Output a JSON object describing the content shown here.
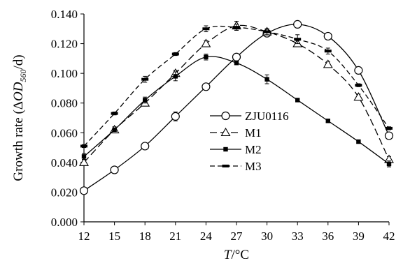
{
  "chart_data": {
    "type": "line",
    "x": [
      12,
      15,
      18,
      21,
      24,
      27,
      30,
      33,
      36,
      39,
      42
    ],
    "xticks": [
      "12",
      "15",
      "18",
      "21",
      "24",
      "27",
      "30",
      "33",
      "36",
      "39",
      "42"
    ],
    "yticks": [
      "0.000",
      "0.020",
      "0.040",
      "0.060",
      "0.080",
      "0.100",
      "0.120",
      "0.140"
    ],
    "xlim": [
      12,
      42
    ],
    "ylim": [
      0,
      0.14
    ],
    "xlabel": {
      "italic": "T",
      "rest": "/°C"
    },
    "ylabel": {
      "prefix": "Growth rate (Δ",
      "italic": "OD",
      "sub": "560",
      "suffix": "/d)"
    },
    "grid": false,
    "legend_position": "center",
    "series": [
      {
        "name": "ZJU0116",
        "line": "solid",
        "marker": "open-circle",
        "values": [
          0.021,
          0.035,
          0.051,
          0.071,
          0.091,
          0.111,
          0.127,
          0.133,
          0.125,
          0.102,
          0.058
        ],
        "errors": [
          0.002,
          0.001,
          0.001,
          0.003,
          0.001,
          0.001,
          0.002,
          0.001,
          0.001,
          0.002,
          0.002
        ]
      },
      {
        "name": "M1",
        "line": "long-dash",
        "marker": "open-triangle",
        "values": [
          0.04,
          0.062,
          0.08,
          0.1,
          0.12,
          0.132,
          0.128,
          0.12,
          0.106,
          0.084,
          0.042
        ],
        "errors": [
          0.002,
          0.002,
          0.002,
          0.002,
          0.002,
          0.003,
          0.002,
          0.002,
          0.002,
          0.002,
          0.002
        ]
      },
      {
        "name": "M2",
        "line": "solid",
        "marker": "filled-square",
        "values": [
          0.044,
          0.062,
          0.082,
          0.098,
          0.111,
          0.107,
          0.096,
          0.082,
          0.068,
          0.054,
          0.039
        ],
        "errors": [
          0.002,
          0.001,
          0.002,
          0.003,
          0.002,
          0.001,
          0.003,
          0.001,
          0.001,
          0.001,
          0.002
        ]
      },
      {
        "name": "M3",
        "line": "short-dash",
        "marker": "filled-dash",
        "values": [
          0.051,
          0.073,
          0.096,
          0.113,
          0.13,
          0.131,
          0.128,
          0.123,
          0.115,
          0.092,
          0.063
        ],
        "errors": [
          0.001,
          0.001,
          0.002,
          0.001,
          0.002,
          0.002,
          0.002,
          0.003,
          0.002,
          0.001,
          0.001
        ]
      }
    ]
  }
}
